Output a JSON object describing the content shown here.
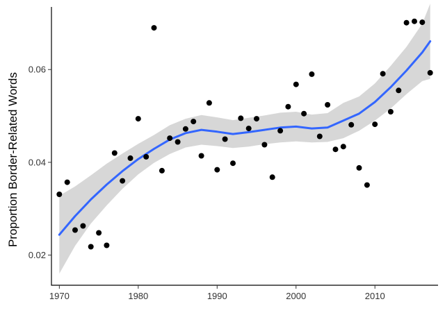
{
  "chart_data": {
    "type": "scatter",
    "title": "",
    "xlabel": "",
    "ylabel": "Proportion Border-Related Words",
    "xlim": [
      1969,
      2018
    ],
    "ylim": [
      0.0135,
      0.0735
    ],
    "x_ticks": [
      1970,
      1980,
      1990,
      2000,
      2010
    ],
    "x_tick_labels": [
      "1970",
      "1980",
      "1990",
      "2000",
      "2010"
    ],
    "y_ticks": [
      0.02,
      0.04,
      0.06
    ],
    "y_tick_labels": [
      "0.02",
      "0.04",
      "0.06"
    ],
    "grid": false,
    "legend": "none",
    "colors": {
      "points": "#000000",
      "smooth_line": "#3366ff",
      "ribbon": "#d3d3d3",
      "axes": "#000000"
    },
    "points": [
      {
        "x": 1970,
        "y": 0.0331
      },
      {
        "x": 1971,
        "y": 0.0357
      },
      {
        "x": 1972,
        "y": 0.0254
      },
      {
        "x": 1973,
        "y": 0.0263
      },
      {
        "x": 1974,
        "y": 0.0218
      },
      {
        "x": 1975,
        "y": 0.0248
      },
      {
        "x": 1976,
        "y": 0.0221
      },
      {
        "x": 1977,
        "y": 0.042
      },
      {
        "x": 1978,
        "y": 0.036
      },
      {
        "x": 1979,
        "y": 0.0409
      },
      {
        "x": 1980,
        "y": 0.0494
      },
      {
        "x": 1981,
        "y": 0.0412
      },
      {
        "x": 1982,
        "y": 0.069
      },
      {
        "x": 1983,
        "y": 0.0382
      },
      {
        "x": 1984,
        "y": 0.0452
      },
      {
        "x": 1985,
        "y": 0.0444
      },
      {
        "x": 1986,
        "y": 0.0472
      },
      {
        "x": 1987,
        "y": 0.0488
      },
      {
        "x": 1988,
        "y": 0.0414
      },
      {
        "x": 1989,
        "y": 0.0528
      },
      {
        "x": 1990,
        "y": 0.0384
      },
      {
        "x": 1991,
        "y": 0.045
      },
      {
        "x": 1992,
        "y": 0.0398
      },
      {
        "x": 1993,
        "y": 0.0495
      },
      {
        "x": 1994,
        "y": 0.0473
      },
      {
        "x": 1995,
        "y": 0.0494
      },
      {
        "x": 1996,
        "y": 0.0438
      },
      {
        "x": 1997,
        "y": 0.0368
      },
      {
        "x": 1998,
        "y": 0.0468
      },
      {
        "x": 1999,
        "y": 0.052
      },
      {
        "x": 2000,
        "y": 0.0568
      },
      {
        "x": 2001,
        "y": 0.0505
      },
      {
        "x": 2002,
        "y": 0.059
      },
      {
        "x": 2003,
        "y": 0.0456
      },
      {
        "x": 2004,
        "y": 0.0524
      },
      {
        "x": 2005,
        "y": 0.0428
      },
      {
        "x": 2006,
        "y": 0.0434
      },
      {
        "x": 2007,
        "y": 0.0481
      },
      {
        "x": 2008,
        "y": 0.0388
      },
      {
        "x": 2009,
        "y": 0.0351
      },
      {
        "x": 2010,
        "y": 0.0482
      },
      {
        "x": 2011,
        "y": 0.0591
      },
      {
        "x": 2012,
        "y": 0.0509
      },
      {
        "x": 2013,
        "y": 0.0555
      },
      {
        "x": 2014,
        "y": 0.0701
      },
      {
        "x": 2015,
        "y": 0.0704
      },
      {
        "x": 2016,
        "y": 0.0702
      },
      {
        "x": 2017,
        "y": 0.0593
      }
    ],
    "smooth_fit": {
      "x": [
        1970,
        1972,
        1974,
        1976,
        1978,
        1980,
        1982,
        1984,
        1986,
        1988,
        1990,
        1992,
        1994,
        1996,
        1998,
        2000,
        2002,
        2004,
        2006,
        2008,
        2010,
        2012,
        2014,
        2016,
        2017
      ],
      "y": [
        0.0244,
        0.0284,
        0.032,
        0.0352,
        0.0381,
        0.0407,
        0.0429,
        0.0449,
        0.0463,
        0.047,
        0.0466,
        0.0461,
        0.0465,
        0.047,
        0.0475,
        0.0477,
        0.0473,
        0.0475,
        0.049,
        0.0505,
        0.053,
        0.0562,
        0.0598,
        0.0637,
        0.0661
      ],
      "lower": [
        0.016,
        0.022,
        0.0268,
        0.0307,
        0.0343,
        0.0374,
        0.0399,
        0.0418,
        0.0432,
        0.0438,
        0.0435,
        0.0431,
        0.0434,
        0.0439,
        0.0443,
        0.0445,
        0.0443,
        0.0444,
        0.0452,
        0.0468,
        0.049,
        0.0516,
        0.0547,
        0.0575,
        0.058
      ],
      "upper": [
        0.0328,
        0.0348,
        0.0372,
        0.0397,
        0.0419,
        0.044,
        0.0459,
        0.048,
        0.0494,
        0.0502,
        0.0497,
        0.0491,
        0.0496,
        0.0501,
        0.0507,
        0.0509,
        0.0503,
        0.0506,
        0.0528,
        0.0542,
        0.057,
        0.0608,
        0.0649,
        0.0699,
        0.0742
      ]
    }
  }
}
